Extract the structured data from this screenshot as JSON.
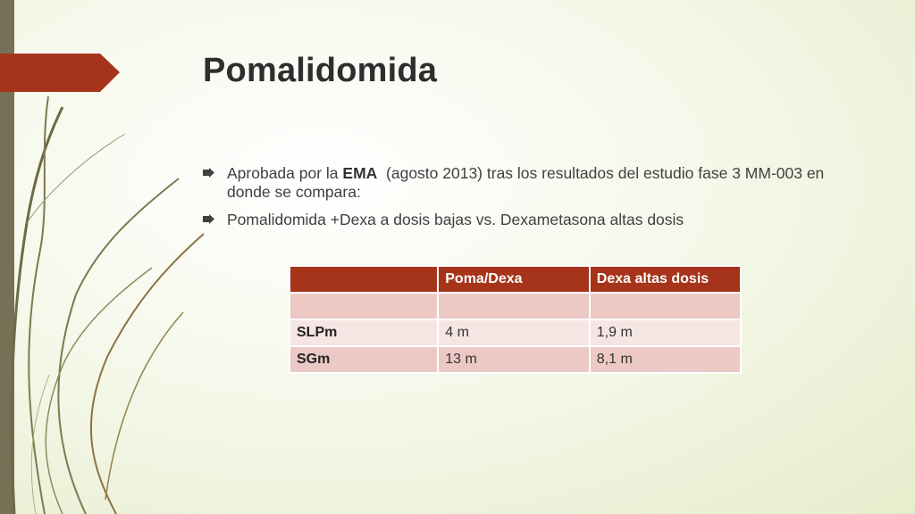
{
  "slide": {
    "title": "Pomalidomida",
    "bullets": [
      {
        "before": "Aprobada por la ",
        "bold": "EMA",
        "after": "  (agosto 2013) tras los resultados del estudio fase 3 MM-003 en donde se compara:"
      },
      {
        "text": "Pomalidomida +Dexa a dosis bajas vs. Dexametasona altas dosis"
      }
    ]
  },
  "table": {
    "headers": [
      "",
      "Poma/Dexa",
      "Dexa altas dosis"
    ],
    "rows": [
      [
        "",
        "",
        ""
      ],
      [
        "SLPm",
        "4 m",
        "1,9 m"
      ],
      [
        "SGm",
        "13 m",
        "8,1 m"
      ]
    ]
  },
  "colors": {
    "accent": "#a6341b",
    "sidebar": "#776f56",
    "row_odd": "#ecc9c5",
    "row_even": "#f6e6e3"
  },
  "icons": {
    "bullet": "arrow-bullet-icon",
    "decoration": "vine-stems"
  }
}
